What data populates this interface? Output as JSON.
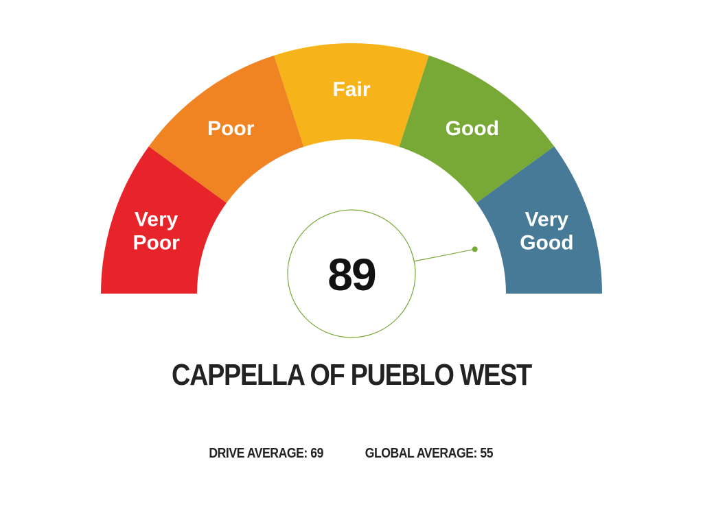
{
  "chart_data": {
    "type": "gauge",
    "scale": {
      "min": 0,
      "max": 100
    },
    "bands": [
      {
        "lines": [
          "Very",
          "Poor"
        ],
        "color": "#e8242b"
      },
      {
        "lines": [
          "Poor"
        ],
        "color": "#f08423"
      },
      {
        "lines": [
          "Fair"
        ],
        "color": "#f7b41a"
      },
      {
        "lines": [
          "Good"
        ],
        "color": "#78a937"
      },
      {
        "lines": [
          "Very",
          "Good"
        ],
        "color": "#477a96"
      }
    ],
    "value": 89,
    "value_display": "89",
    "pointer_color": "#78a937"
  },
  "facility": {
    "name": "CAPPELLA OF PUEBLO WEST"
  },
  "averages": {
    "drive_label": "DRIVE AVERAGE:",
    "drive_value": "69",
    "global_label": "GLOBAL AVERAGE:",
    "global_value": "55"
  }
}
